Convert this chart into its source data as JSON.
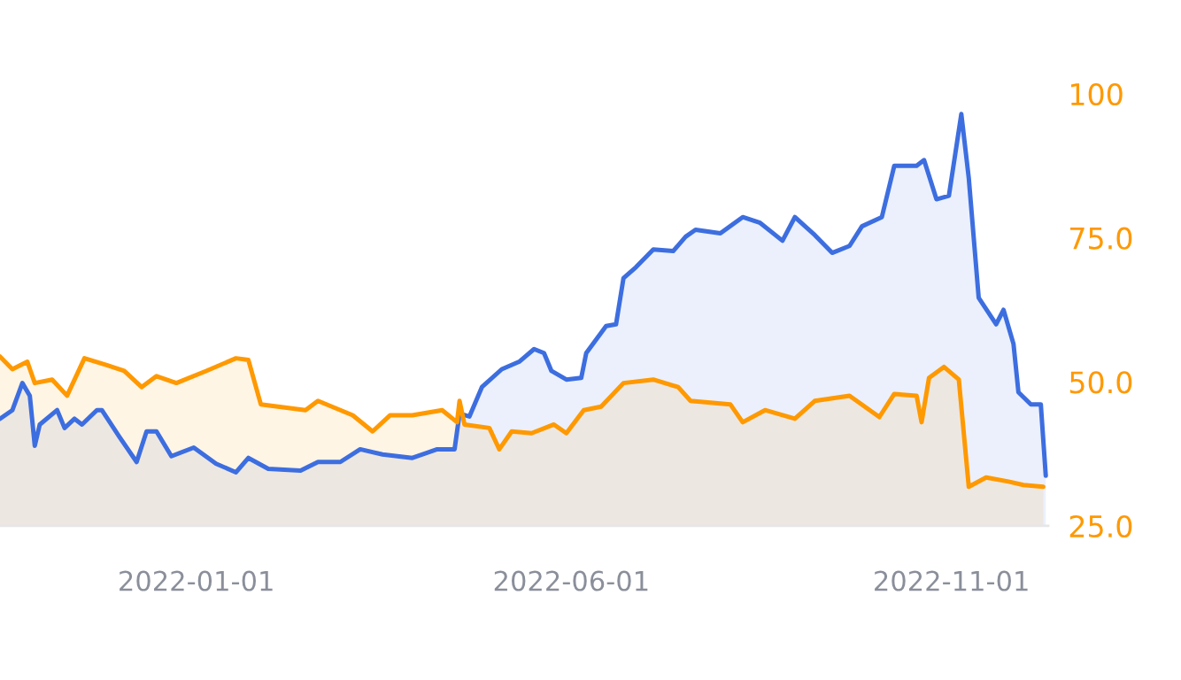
{
  "chart_data": {
    "type": "area",
    "xlim": [
      "2021-10-14",
      "2022-12-10"
    ],
    "xticks": [
      {
        "value": "2022-01-01",
        "label": "2022-01-01"
      },
      {
        "value": "2022-06-01",
        "label": "2022-06-01"
      },
      {
        "value": "2022-11-01",
        "label": "2022-11-01"
      }
    ],
    "ylim": [
      25,
      100
    ],
    "yticks": [
      {
        "value": 25,
        "label": "25.0"
      },
      {
        "value": 50,
        "label": "50.0"
      },
      {
        "value": 75,
        "label": "75.0"
      },
      100
    ],
    "grid": false,
    "series": [
      {
        "color": "#3d6ee0",
        "x": [
          "2021-10-14",
          "2021-10-19",
          "2021-10-23",
          "2021-10-26",
          "2021-10-28",
          "2021-10-30",
          "2021-11-06",
          "2021-11-09",
          "2021-11-13",
          "2021-11-16",
          "2021-11-22",
          "2021-11-24",
          "2021-12-01",
          "2021-12-08",
          "2021-12-12",
          "2021-12-16",
          "2021-12-22",
          "2021-12-31",
          "2022-01-09",
          "2022-01-17",
          "2022-01-22",
          "2022-01-30",
          "2022-02-12",
          "2022-02-19",
          "2022-02-28",
          "2022-03-08",
          "2022-03-17",
          "2022-03-29",
          "2022-04-08",
          "2022-04-15",
          "2022-04-17",
          "2022-04-21",
          "2022-04-26",
          "2022-05-04",
          "2022-05-11",
          "2022-05-17",
          "2022-05-21",
          "2022-05-24",
          "2022-05-30",
          "2022-06-05",
          "2022-06-07",
          "2022-06-15",
          "2022-06-19",
          "2022-06-22",
          "2022-06-27",
          "2022-07-04",
          "2022-07-12",
          "2022-07-17",
          "2022-07-21",
          "2022-07-31",
          "2022-08-09",
          "2022-08-16",
          "2022-08-25",
          "2022-08-30",
          "2022-09-07",
          "2022-09-14",
          "2022-09-21",
          "2022-09-26",
          "2022-10-04",
          "2022-10-09",
          "2022-10-18",
          "2022-10-21",
          "2022-10-26",
          "2022-10-31",
          "2022-11-05",
          "2022-11-08",
          "2022-11-12",
          "2022-11-19",
          "2022-11-22",
          "2022-11-26",
          "2022-11-28",
          "2022-12-03",
          "2022-12-07",
          "2022-12-09"
        ],
        "values": [
          43.6,
          45.1,
          49.8,
          47.6,
          38.9,
          42.6,
          45.1,
          42.0,
          43.6,
          42.6,
          45.1,
          45.1,
          40.5,
          36.1,
          41.4,
          41.4,
          37.1,
          38.6,
          35.8,
          34.3,
          36.8,
          34.9,
          34.6,
          36.1,
          36.1,
          38.3,
          37.4,
          36.8,
          38.3,
          38.3,
          44.5,
          44.0,
          49.1,
          52.2,
          53.5,
          55.7,
          55.0,
          51.9,
          50.4,
          50.7,
          55.0,
          59.7,
          60.0,
          68.0,
          69.9,
          73.0,
          72.7,
          75.2,
          76.4,
          75.8,
          78.6,
          77.6,
          74.5,
          78.6,
          75.5,
          72.4,
          73.6,
          77.0,
          78.6,
          87.5,
          87.5,
          88.5,
          81.7,
          82.3,
          96.5,
          85.4,
          64.6,
          60.0,
          62.5,
          56.6,
          48.2,
          46.1,
          46.1,
          33.7
        ]
      },
      {
        "color": "#ff9900",
        "x": [
          "2021-10-14",
          "2021-10-19",
          "2021-10-25",
          "2021-10-28",
          "2021-11-04",
          "2021-11-10",
          "2021-11-17",
          "2021-11-26",
          "2021-12-03",
          "2021-12-10",
          "2021-12-16",
          "2021-12-24",
          "2022-01-05",
          "2022-01-17",
          "2022-01-22",
          "2022-01-27",
          "2022-02-14",
          "2022-02-19",
          "2022-03-05",
          "2022-03-13",
          "2022-03-20",
          "2022-03-29",
          "2022-04-10",
          "2022-04-16",
          "2022-04-17",
          "2022-04-19",
          "2022-04-29",
          "2022-05-03",
          "2022-05-08",
          "2022-05-16",
          "2022-05-25",
          "2022-05-30",
          "2022-06-06",
          "2022-06-13",
          "2022-06-22",
          "2022-07-04",
          "2022-07-14",
          "2022-07-19",
          "2022-08-04",
          "2022-08-09",
          "2022-08-18",
          "2022-08-30",
          "2022-09-07",
          "2022-09-21",
          "2022-10-03",
          "2022-10-09",
          "2022-10-18",
          "2022-10-20",
          "2022-10-23",
          "2022-10-29",
          "2022-11-04",
          "2022-11-08",
          "2022-11-15",
          "2022-11-24",
          "2022-11-30",
          "2022-12-08"
        ],
        "values": [
          54.4,
          52.2,
          53.5,
          49.8,
          50.4,
          47.6,
          54.1,
          52.9,
          51.9,
          49.1,
          51.0,
          49.8,
          51.9,
          54.1,
          53.8,
          46.1,
          45.1,
          46.7,
          44.2,
          41.4,
          44.2,
          44.2,
          45.1,
          43.0,
          46.7,
          42.6,
          42.0,
          38.3,
          41.4,
          41.1,
          42.6,
          41.1,
          45.1,
          45.7,
          49.8,
          50.4,
          49.1,
          46.7,
          46.1,
          43.0,
          45.1,
          43.6,
          46.7,
          47.6,
          43.9,
          47.9,
          47.6,
          43.0,
          50.7,
          52.6,
          50.4,
          31.8,
          33.4,
          32.7,
          32.1,
          31.8
        ]
      }
    ]
  }
}
